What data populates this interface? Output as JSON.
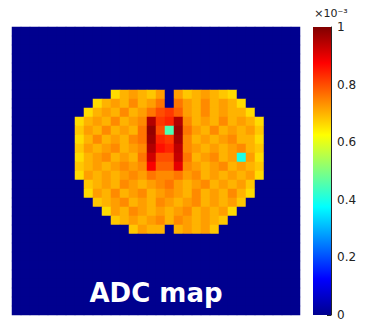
{
  "chart_data": {
    "type": "heatmap",
    "annotation": "ADC map",
    "tick_labels": false,
    "colorbar": {
      "range": [
        0,
        1
      ],
      "ticks": [
        0,
        0.2,
        0.4,
        0.6,
        0.8,
        1
      ],
      "label": "×10⁻³"
    },
    "cells": [
      [
        0,
        0,
        0,
        0,
        0,
        0,
        0,
        0,
        0,
        0,
        0,
        0,
        0,
        0,
        0,
        0,
        0,
        0,
        0,
        0,
        0,
        0,
        0,
        0,
        0,
        0,
        0,
        0,
        0,
        0,
        0,
        0
      ],
      [
        0,
        0,
        0,
        0,
        0,
        0,
        0,
        0,
        0,
        0,
        0,
        0,
        0,
        0,
        0,
        0,
        0,
        0,
        0,
        0,
        0,
        0,
        0,
        0,
        0,
        0,
        0,
        0,
        0,
        0,
        0,
        0
      ],
      [
        0,
        0,
        0,
        0,
        0,
        0,
        0,
        0,
        0,
        0,
        0,
        0,
        0,
        0,
        0,
        0,
        0,
        0,
        0,
        0,
        0,
        0,
        0,
        0,
        0,
        0,
        0,
        0,
        0,
        0,
        0,
        0
      ],
      [
        0,
        0,
        0,
        0,
        0,
        0,
        0,
        0,
        0,
        0,
        0,
        0,
        0,
        0,
        0,
        0,
        0,
        0,
        0,
        0,
        0,
        0,
        0,
        0,
        0,
        0,
        0,
        0,
        0,
        0,
        0,
        0
      ],
      [
        0,
        0,
        0,
        0,
        0,
        0,
        0,
        0,
        0,
        0,
        0,
        0,
        0,
        0,
        0,
        0,
        0,
        0,
        0,
        0,
        0,
        0,
        0,
        0,
        0,
        0,
        0,
        0,
        0,
        0,
        0,
        0
      ],
      [
        0,
        0,
        0,
        0,
        0,
        0,
        0,
        0,
        0,
        0,
        0,
        0,
        0,
        0,
        0,
        0,
        0,
        0,
        0,
        0,
        0,
        0,
        0,
        0,
        0,
        0,
        0,
        0,
        0,
        0,
        0,
        0
      ],
      [
        0,
        0,
        0,
        0,
        0,
        0,
        0,
        0,
        0,
        0,
        0,
        0,
        0,
        0,
        0,
        0,
        0,
        0,
        0,
        0,
        0,
        0,
        0,
        0,
        0,
        0,
        0,
        0,
        0,
        0,
        0,
        0
      ],
      [
        0,
        0,
        0,
        0,
        0,
        0,
        0,
        0,
        0,
        0,
        0,
        0.66,
        0.7,
        0.72,
        0.7,
        0.68,
        0.72,
        0,
        0.72,
        0.68,
        0.7,
        0.72,
        0.7,
        0.68,
        0.66,
        0,
        0,
        0,
        0,
        0,
        0,
        0
      ],
      [
        0,
        0,
        0,
        0,
        0,
        0,
        0,
        0,
        0,
        0.66,
        0.7,
        0.72,
        0.7,
        0.74,
        0.7,
        0.72,
        0.76,
        0,
        0.76,
        0.72,
        0.7,
        0.74,
        0.7,
        0.72,
        0.7,
        0.66,
        0,
        0,
        0,
        0,
        0,
        0
      ],
      [
        0,
        0,
        0,
        0,
        0,
        0,
        0,
        0,
        0.66,
        0.7,
        0.72,
        0.7,
        0.74,
        0.7,
        0.72,
        0.76,
        0.8,
        0.82,
        0.78,
        0.72,
        0.7,
        0.74,
        0.7,
        0.72,
        0.7,
        0.7,
        0.66,
        0,
        0,
        0,
        0,
        0
      ],
      [
        0,
        0,
        0,
        0,
        0,
        0,
        0,
        0.66,
        0.7,
        0.72,
        0.7,
        0.74,
        0.7,
        0.72,
        0.74,
        0.95,
        0.82,
        0.84,
        0.95,
        0.74,
        0.7,
        0.72,
        0.7,
        0.74,
        0.7,
        0.72,
        0.7,
        0.66,
        0,
        0,
        0,
        0
      ],
      [
        0,
        0,
        0,
        0,
        0,
        0,
        0,
        0.68,
        0.72,
        0.7,
        0.74,
        0.7,
        0.72,
        0.7,
        0.76,
        0.98,
        0.8,
        0.45,
        0.97,
        0.76,
        0.72,
        0.7,
        0.74,
        0.7,
        0.72,
        0.7,
        0.72,
        0.68,
        0,
        0,
        0,
        0
      ],
      [
        0,
        0,
        0,
        0,
        0,
        0,
        0,
        0.66,
        0.7,
        0.74,
        0.7,
        0.72,
        0.7,
        0.74,
        0.76,
        0.97,
        0.84,
        0.82,
        0.96,
        0.74,
        0.7,
        0.72,
        0.7,
        0.72,
        0.74,
        0.7,
        0.7,
        0.66,
        0,
        0,
        0,
        0
      ],
      [
        0,
        0,
        0,
        0,
        0,
        0,
        0,
        0.68,
        0.72,
        0.7,
        0.72,
        0.74,
        0.7,
        0.72,
        0.74,
        0.95,
        0.86,
        0.84,
        0.94,
        0.74,
        0.72,
        0.7,
        0.72,
        0.7,
        0.72,
        0.74,
        0.7,
        0.68,
        0,
        0,
        0,
        0
      ],
      [
        0,
        0,
        0,
        0,
        0,
        0,
        0,
        0.66,
        0.7,
        0.72,
        0.74,
        0.7,
        0.72,
        0.7,
        0.76,
        0.92,
        0.8,
        0.8,
        0.93,
        0.76,
        0.7,
        0.72,
        0.74,
        0.7,
        0.72,
        0.4,
        0.72,
        0.66,
        0,
        0,
        0,
        0
      ],
      [
        0,
        0,
        0,
        0,
        0,
        0,
        0,
        0.68,
        0.7,
        0.72,
        0.7,
        0.72,
        0.74,
        0.72,
        0.74,
        0.88,
        0.78,
        0.78,
        0.9,
        0.74,
        0.72,
        0.7,
        0.72,
        0.74,
        0.7,
        0.72,
        0.7,
        0.68,
        0,
        0,
        0,
        0
      ],
      [
        0,
        0,
        0,
        0,
        0,
        0,
        0,
        0.66,
        0.72,
        0.7,
        0.72,
        0.7,
        0.72,
        0.74,
        0.72,
        0.76,
        0.74,
        0.74,
        0.76,
        0.72,
        0.74,
        0.7,
        0.72,
        0.7,
        0.72,
        0.7,
        0.72,
        0.66,
        0,
        0,
        0,
        0
      ],
      [
        0,
        0,
        0,
        0,
        0,
        0,
        0,
        0,
        0.68,
        0.7,
        0.72,
        0.7,
        0.74,
        0.72,
        0.7,
        0.72,
        0.74,
        0.76,
        0.72,
        0.7,
        0.72,
        0.74,
        0.7,
        0.72,
        0.7,
        0.72,
        0.68,
        0,
        0,
        0,
        0,
        0
      ],
      [
        0,
        0,
        0,
        0,
        0,
        0,
        0,
        0,
        0.66,
        0.72,
        0.7,
        0.74,
        0.7,
        0.72,
        0.74,
        0.7,
        0.72,
        0.74,
        0.72,
        0.7,
        0.74,
        0.7,
        0.72,
        0.7,
        0.74,
        0.7,
        0.66,
        0,
        0,
        0,
        0,
        0
      ],
      [
        0,
        0,
        0,
        0,
        0,
        0,
        0,
        0,
        0,
        0.68,
        0.7,
        0.72,
        0.74,
        0.7,
        0.72,
        0.7,
        0.74,
        0.72,
        0.7,
        0.72,
        0.74,
        0.7,
        0.72,
        0.7,
        0.72,
        0.68,
        0,
        0,
        0,
        0,
        0,
        0
      ],
      [
        0,
        0,
        0,
        0,
        0,
        0,
        0,
        0,
        0,
        0,
        0.66,
        0.72,
        0.7,
        0.74,
        0.72,
        0.7,
        0.72,
        0.7,
        0.72,
        0.74,
        0.7,
        0.72,
        0.7,
        0.72,
        0.66,
        0,
        0,
        0,
        0,
        0,
        0,
        0
      ],
      [
        0,
        0,
        0,
        0,
        0,
        0,
        0,
        0,
        0,
        0,
        0,
        0.68,
        0.7,
        0.72,
        0.7,
        0.72,
        0.74,
        0.7,
        0.74,
        0.72,
        0.7,
        0.72,
        0.7,
        0.68,
        0,
        0,
        0,
        0,
        0,
        0,
        0,
        0
      ],
      [
        0,
        0,
        0,
        0,
        0,
        0,
        0,
        0,
        0,
        0,
        0,
        0,
        0,
        0.68,
        0.72,
        0.7,
        0.7,
        0,
        0.7,
        0.72,
        0.7,
        0.72,
        0.68,
        0,
        0,
        0,
        0,
        0,
        0,
        0,
        0,
        0
      ],
      [
        0,
        0,
        0,
        0,
        0,
        0,
        0,
        0,
        0,
        0,
        0,
        0,
        0,
        0,
        0,
        0,
        0,
        0,
        0,
        0,
        0,
        0,
        0,
        0,
        0,
        0,
        0,
        0,
        0,
        0,
        0,
        0
      ],
      [
        0,
        0,
        0,
        0,
        0,
        0,
        0,
        0,
        0,
        0,
        0,
        0,
        0,
        0,
        0,
        0,
        0,
        0,
        0,
        0,
        0,
        0,
        0,
        0,
        0,
        0,
        0,
        0,
        0,
        0,
        0,
        0
      ],
      [
        0,
        0,
        0,
        0,
        0,
        0,
        0,
        0,
        0,
        0,
        0,
        0,
        0,
        0,
        0,
        0,
        0,
        0,
        0,
        0,
        0,
        0,
        0,
        0,
        0,
        0,
        0,
        0,
        0,
        0,
        0,
        0
      ],
      [
        0,
        0,
        0,
        0,
        0,
        0,
        0,
        0,
        0,
        0,
        0,
        0,
        0,
        0,
        0,
        0,
        0,
        0,
        0,
        0,
        0,
        0,
        0,
        0,
        0,
        0,
        0,
        0,
        0,
        0,
        0,
        0
      ],
      [
        0,
        0,
        0,
        0,
        0,
        0,
        0,
        0,
        0,
        0,
        0,
        0,
        0,
        0,
        0,
        0,
        0,
        0,
        0,
        0,
        0,
        0,
        0,
        0,
        0,
        0,
        0,
        0,
        0,
        0,
        0,
        0
      ],
      [
        0,
        0,
        0,
        0,
        0,
        0,
        0,
        0,
        0,
        0,
        0,
        0,
        0,
        0,
        0,
        0,
        0,
        0,
        0,
        0,
        0,
        0,
        0,
        0,
        0,
        0,
        0,
        0,
        0,
        0,
        0,
        0
      ],
      [
        0,
        0,
        0,
        0,
        0,
        0,
        0,
        0,
        0,
        0,
        0,
        0,
        0,
        0,
        0,
        0,
        0,
        0,
        0,
        0,
        0,
        0,
        0,
        0,
        0,
        0,
        0,
        0,
        0,
        0,
        0,
        0
      ],
      [
        0,
        0,
        0,
        0,
        0,
        0,
        0,
        0,
        0,
        0,
        0,
        0,
        0,
        0,
        0,
        0,
        0,
        0,
        0,
        0,
        0,
        0,
        0,
        0,
        0,
        0,
        0,
        0,
        0,
        0,
        0,
        0
      ],
      [
        0,
        0,
        0,
        0,
        0,
        0,
        0,
        0,
        0,
        0,
        0,
        0,
        0,
        0,
        0,
        0,
        0,
        0,
        0,
        0,
        0,
        0,
        0,
        0,
        0,
        0,
        0,
        0,
        0,
        0,
        0,
        0
      ]
    ]
  }
}
